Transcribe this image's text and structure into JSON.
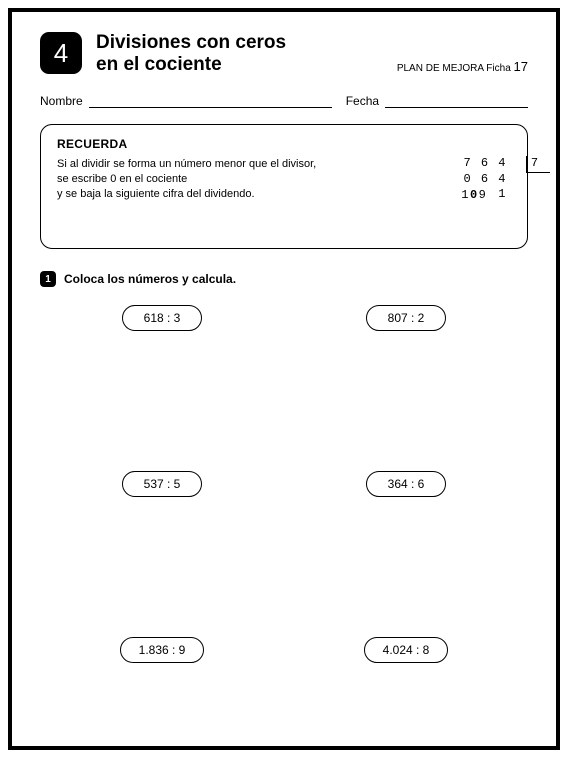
{
  "header": {
    "unit_number": "4",
    "title_line1": "Divisiones con ceros",
    "title_line2": "en el cociente",
    "plan_label": "PLAN DE MEJORA  Ficha",
    "ficha_number": "17"
  },
  "name_date": {
    "name_label": "Nombre",
    "date_label": "Fecha"
  },
  "recuerda": {
    "title": "RECUERDA",
    "line1": "Si al dividir se forma un número menor que el divisor,",
    "line2": "se escribe 0 en el cociente",
    "line3": "y se baja la siguiente cifra del dividendo.",
    "example": {
      "dividend_row1": "7 6 4",
      "dividend_row2": "0 6 4",
      "dividend_row3": "    1",
      "divisor": "7",
      "quotient_pre": "1",
      "quotient_bold": "0",
      "quotient_post": "9"
    }
  },
  "exercise": {
    "number": "1",
    "instruction": "Coloca los números y calcula."
  },
  "problems": [
    "618 : 3",
    "807 : 2",
    "537 : 5",
    "364 : 6",
    "1.836 : 9",
    "4.024 : 8"
  ],
  "colors": {
    "background": "#ffffff",
    "text": "#000000",
    "border": "#000000"
  }
}
